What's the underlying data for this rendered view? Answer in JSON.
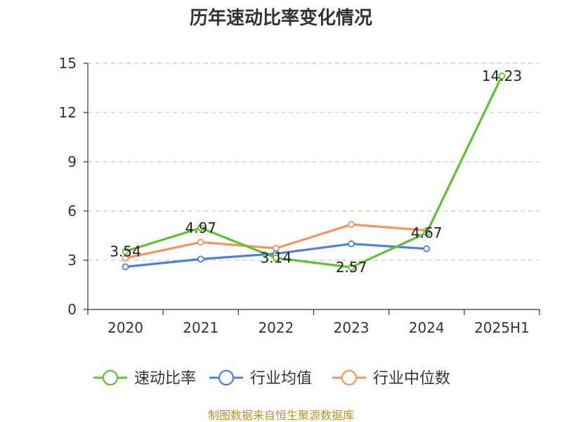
{
  "chart_data": {
    "type": "line",
    "title": "历年速动比率变化情况",
    "categories": [
      "2020",
      "2021",
      "2022",
      "2023",
      "2024",
      "2025H1"
    ],
    "ylim": [
      0,
      15
    ],
    "yticks": [
      0,
      3,
      6,
      9,
      12,
      15
    ],
    "grid": true,
    "legend_position": "bottom",
    "series": [
      {
        "name": "速动比率",
        "color": "#5ec12f",
        "values": [
          3.54,
          4.97,
          3.14,
          2.57,
          4.67,
          14.23
        ],
        "labels": [
          "3.54",
          "4.97",
          "3.14",
          "2.57",
          "4.67",
          "14.23"
        ]
      },
      {
        "name": "行业均值",
        "color": "#4d7fdd",
        "values": [
          2.6,
          3.07,
          3.4,
          4.0,
          3.7,
          null
        ]
      },
      {
        "name": "行业中位数",
        "color": "#f5925e",
        "values": [
          3.13,
          4.1,
          3.73,
          5.18,
          4.82,
          null
        ]
      }
    ]
  },
  "source_text": "制图数据来自恒生聚源数据库",
  "source_color": "#b8922a"
}
